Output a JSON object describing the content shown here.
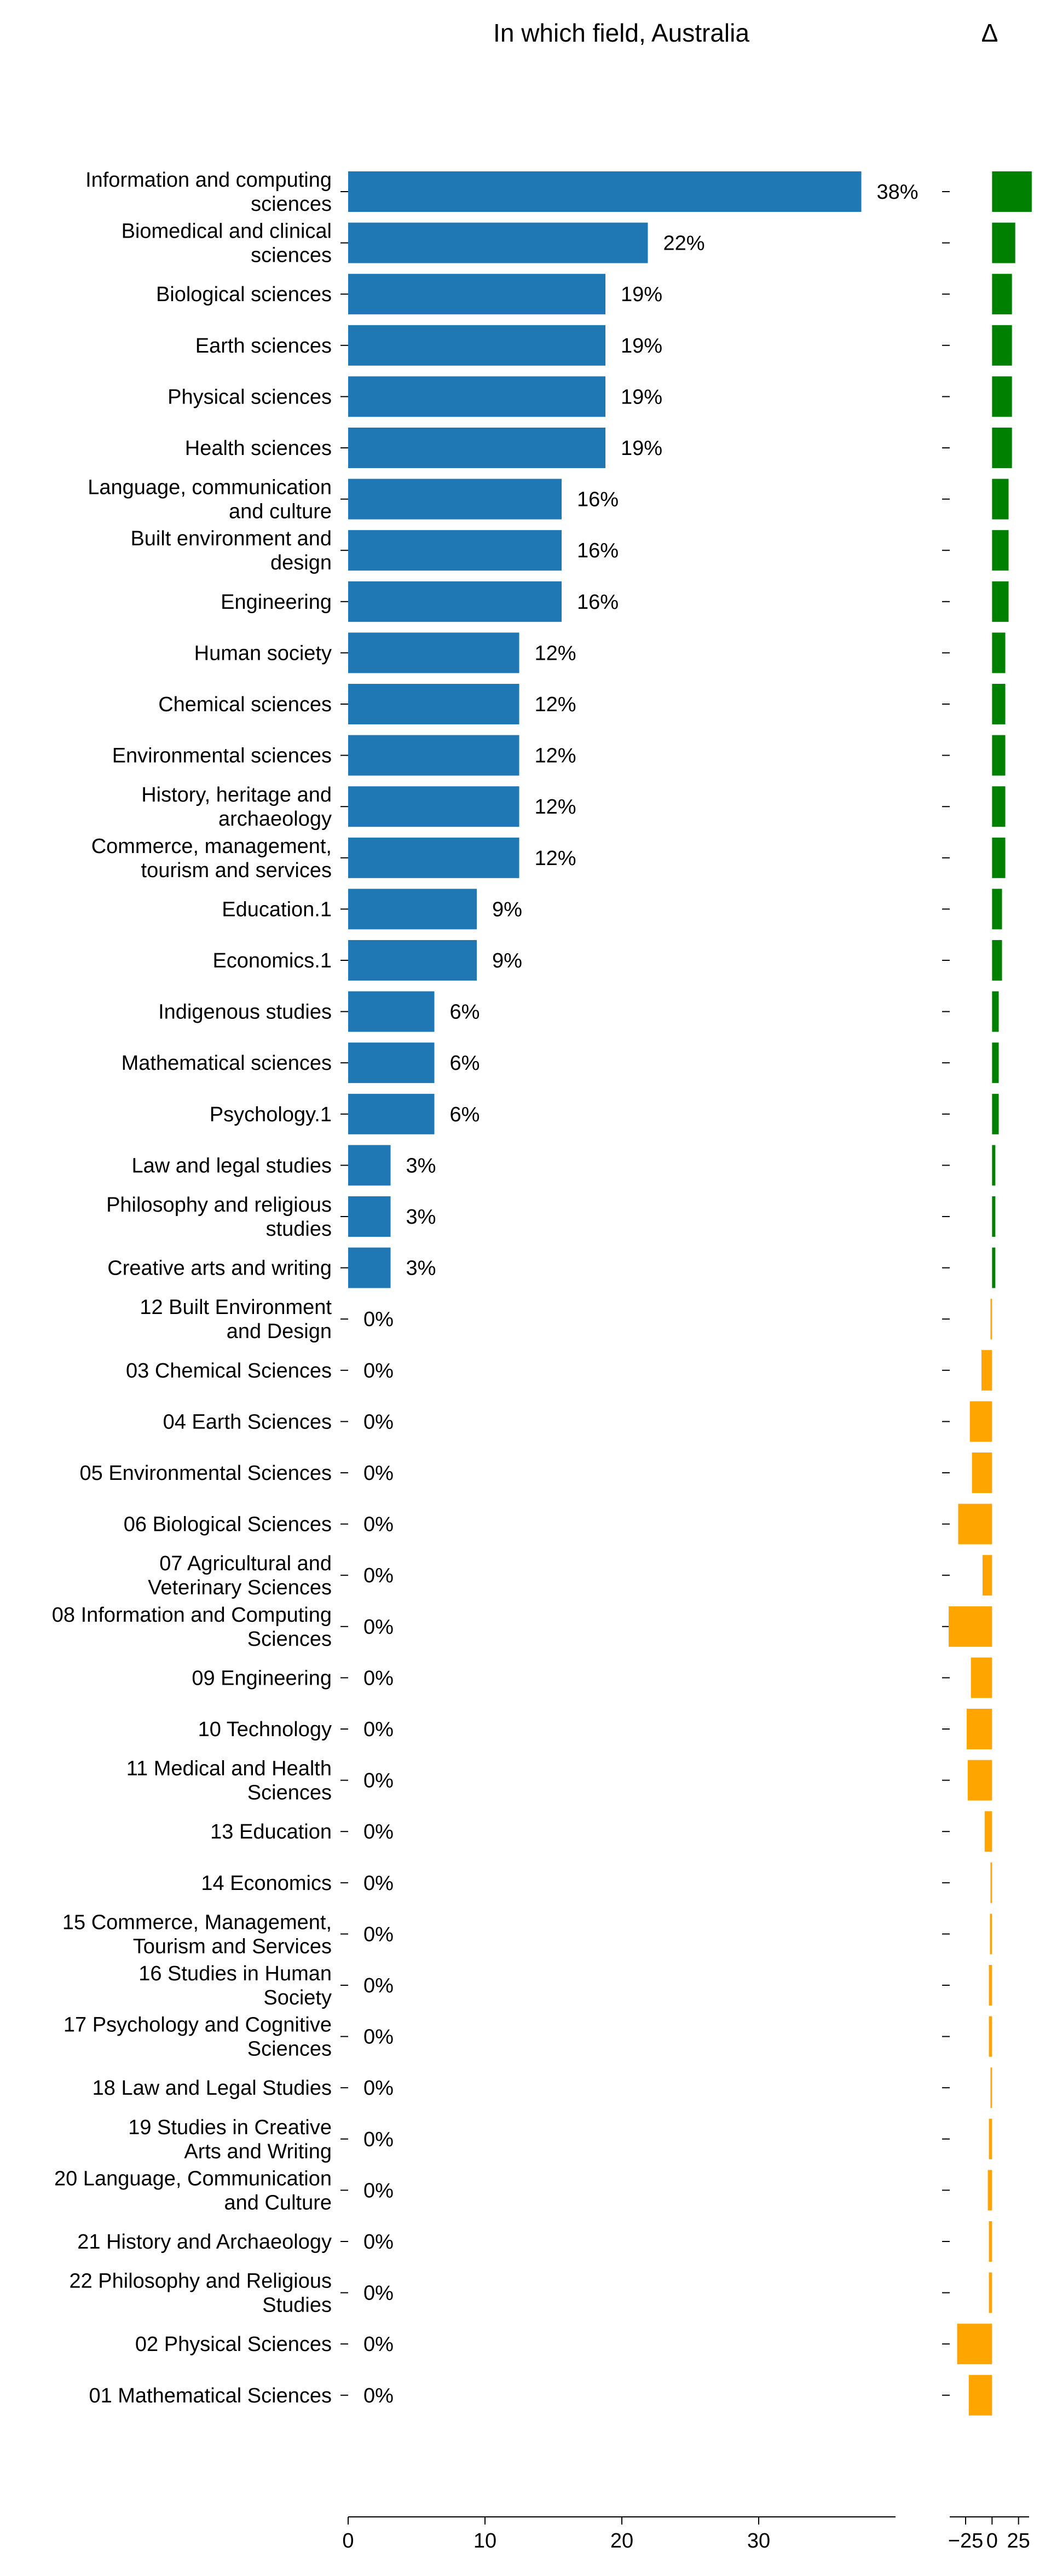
{
  "chart_data": [
    {
      "type": "bar",
      "orientation": "horizontal",
      "title": "In which field, Australia",
      "xlim": [
        0,
        40
      ],
      "x_ticks": [
        0,
        10,
        20,
        30
      ],
      "value_label_suffix": "%",
      "grid": false,
      "colors": {
        "bar": "#1f77b4"
      },
      "categories": [
        "Information and computing sciences",
        "Biomedical and clinical sciences",
        "Biological sciences",
        "Earth sciences",
        "Physical sciences",
        "Health sciences",
        "Language, communication and culture",
        "Built environment and design",
        "Engineering",
        "Human society",
        "Chemical sciences",
        "Environmental sciences",
        "History, heritage and archaeology",
        "Commerce, management, tourism and services",
        "Education.1",
        "Economics.1",
        "Indigenous studies",
        "Mathematical sciences",
        "Psychology.1",
        "Law and legal studies",
        "Philosophy and religious studies",
        "Creative arts and writing",
        "12 Built Environment and Design",
        "03 Chemical Sciences",
        "04 Earth Sciences",
        "05 Environmental Sciences",
        "06 Biological Sciences",
        "07 Agricultural and Veterinary Sciences",
        "08 Information and Computing Sciences",
        "09 Engineering",
        "10 Technology",
        "11 Medical and Health Sciences",
        "13 Education",
        "14 Economics",
        "15 Commerce, Management, Tourism and Services",
        "16 Studies in Human Society",
        "17 Psychology and Cognitive Sciences",
        "18 Law and Legal Studies",
        "19 Studies in Creative Arts and Writing",
        "20 Language, Communication and Culture",
        "21 History and Archaeology",
        "22 Philosophy and Religious Studies",
        "02 Physical Sciences",
        "01 Mathematical Sciences"
      ],
      "category_lines": [
        [
          "Information and computing",
          "sciences"
        ],
        [
          "Biomedical and clinical",
          "sciences"
        ],
        [
          "Biological sciences"
        ],
        [
          "Earth sciences"
        ],
        [
          "Physical sciences"
        ],
        [
          "Health sciences"
        ],
        [
          "Language, communication",
          "and culture"
        ],
        [
          "Built environment and",
          "design"
        ],
        [
          "Engineering"
        ],
        [
          "Human society"
        ],
        [
          "Chemical sciences"
        ],
        [
          "Environmental sciences"
        ],
        [
          "History, heritage and",
          "archaeology"
        ],
        [
          "Commerce, management,",
          "tourism and services"
        ],
        [
          "Education.1"
        ],
        [
          "Economics.1"
        ],
        [
          "Indigenous studies"
        ],
        [
          "Mathematical sciences"
        ],
        [
          "Psychology.1"
        ],
        [
          "Law and legal studies"
        ],
        [
          "Philosophy and religious",
          "studies"
        ],
        [
          "Creative arts and writing"
        ],
        [
          "12 Built Environment",
          "and Design"
        ],
        [
          "03 Chemical Sciences"
        ],
        [
          "04 Earth Sciences"
        ],
        [
          "05 Environmental Sciences"
        ],
        [
          "06 Biological Sciences"
        ],
        [
          "07 Agricultural and",
          "Veterinary Sciences"
        ],
        [
          "08 Information and Computing",
          "Sciences"
        ],
        [
          "09 Engineering"
        ],
        [
          "10 Technology"
        ],
        [
          "11 Medical and Health",
          "Sciences"
        ],
        [
          "13 Education"
        ],
        [
          "14 Economics"
        ],
        [
          "15 Commerce, Management,",
          "Tourism and Services"
        ],
        [
          "16 Studies in Human",
          "Society"
        ],
        [
          "17 Psychology and Cognitive",
          "Sciences"
        ],
        [
          "18 Law and Legal Studies"
        ],
        [
          "19 Studies in Creative",
          "Arts and Writing"
        ],
        [
          "20 Language, Communication",
          "and Culture"
        ],
        [
          "21 History and Archaeology"
        ],
        [
          "22 Philosophy and Religious",
          "Studies"
        ],
        [
          "02 Physical Sciences"
        ],
        [
          "01 Mathematical Sciences"
        ]
      ],
      "values": [
        37.5,
        21.9,
        18.8,
        18.8,
        18.8,
        18.8,
        15.6,
        15.6,
        15.6,
        12.5,
        12.5,
        12.5,
        12.5,
        12.5,
        9.4,
        9.4,
        6.3,
        6.3,
        6.3,
        3.1,
        3.1,
        3.1,
        0,
        0,
        0,
        0,
        0,
        0,
        0,
        0,
        0,
        0,
        0,
        0,
        0,
        0,
        0,
        0,
        0,
        0,
        0,
        0,
        0,
        0
      ],
      "value_labels": [
        "38%",
        "22%",
        "19%",
        "19%",
        "19%",
        "19%",
        "16%",
        "16%",
        "16%",
        "12%",
        "12%",
        "12%",
        "12%",
        "12%",
        "9%",
        "9%",
        "6%",
        "6%",
        "6%",
        "3%",
        "3%",
        "3%",
        "0%",
        "0%",
        "0%",
        "0%",
        "0%",
        "0%",
        "0%",
        "0%",
        "0%",
        "0%",
        "0%",
        "0%",
        "0%",
        "0%",
        "0%",
        "0%",
        "0%",
        "0%",
        "0%",
        "0%",
        "0%",
        "0%"
      ]
    },
    {
      "type": "bar",
      "orientation": "horizontal",
      "title": "Δ",
      "xlim": [
        -40,
        35
      ],
      "x_ticks": [
        -25,
        0,
        25
      ],
      "x_tick_labels": [
        "−25",
        "0",
        "25"
      ],
      "grid": false,
      "colors": {
        "positive": "#008000",
        "negative": "#ffa500"
      },
      "values": [
        37.5,
        21.9,
        18.8,
        18.8,
        18.8,
        18.8,
        15.6,
        15.6,
        15.6,
        12.5,
        12.5,
        12.5,
        12.5,
        12.5,
        9.4,
        9.4,
        6.3,
        6.3,
        6.3,
        3.1,
        3.1,
        3.1,
        -1.5,
        -10,
        -21,
        -19,
        -32,
        -9,
        -41,
        -20,
        -24,
        -23,
        -7,
        -1.5,
        -2,
        -3,
        -3,
        -1.5,
        -3,
        -4,
        -3,
        -3,
        -33,
        -22
      ]
    }
  ]
}
